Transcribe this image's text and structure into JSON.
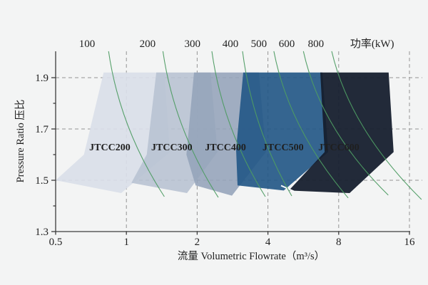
{
  "page": {
    "background": "#f3f4f4"
  },
  "chart_data": {
    "type": "area",
    "title": "",
    "description": "Centrifugal compressor family performance map: pressure ratio vs volumetric flowrate with constant-power curves",
    "x_axis": {
      "label": "流量 Volumetric Flowrate（m³/s）",
      "scale": "log2",
      "range": [
        0.5,
        16
      ],
      "ticks": [
        0.5,
        1,
        2,
        4,
        8,
        16
      ],
      "tick_labels": [
        "0.5",
        "1",
        "2",
        "4",
        "8",
        "16"
      ],
      "gridline_flows": [
        1,
        2,
        4,
        8,
        16
      ]
    },
    "y_axis": {
      "label": "Pressure Ratio 压比",
      "scale": "linear",
      "range": [
        1.3,
        2.0
      ],
      "ticks": [
        1.3,
        1.5,
        1.7,
        1.9
      ],
      "tick_labels": [
        "1.3",
        "1.5",
        "1.7",
        "1.9"
      ],
      "minor_ticks": [
        1.4,
        1.6,
        1.8
      ],
      "gridline_ratios": [
        1.5,
        1.7,
        1.9
      ]
    },
    "top_axis": {
      "label": "功率(kW)",
      "label_flow": 11.1,
      "tick_labels": [
        "100",
        "200",
        "300",
        "400",
        "500",
        "600",
        "800"
      ],
      "tick_flows": [
        0.68,
        1.23,
        1.91,
        2.77,
        3.66,
        4.81,
        6.4
      ]
    },
    "grid": {
      "style": "dashed",
      "color": "#949494"
    },
    "axis_color": "#3c3c3c",
    "series": [
      {
        "name": "JTCC200",
        "fill": "#d9dfe9",
        "opacity": 0.9,
        "label_color": "#19222f",
        "label_pos": {
          "flow": 0.85,
          "ratio": 1.63
        },
        "vertices": [
          [
            0.8,
            1.92
          ],
          [
            1.45,
            1.92
          ],
          [
            1.53,
            1.61
          ],
          [
            0.95,
            1.45
          ],
          [
            0.5,
            1.5
          ],
          [
            0.66,
            1.6
          ]
        ]
      },
      {
        "name": "JTCC300",
        "fill": "#b7c2d2",
        "opacity": 0.88,
        "label_color": "#19222f",
        "label_pos": {
          "flow": 1.56,
          "ratio": 1.63
        },
        "vertices": [
          [
            1.34,
            1.92
          ],
          [
            2.28,
            1.92
          ],
          [
            2.44,
            1.61
          ],
          [
            1.81,
            1.45
          ],
          [
            1.05,
            1.49
          ],
          [
            1.22,
            1.6
          ]
        ]
      },
      {
        "name": "JTCC400",
        "fill": "#94a3ba",
        "opacity": 0.88,
        "label_color": "#19222f",
        "label_pos": {
          "flow": 2.64,
          "ratio": 1.63
        },
        "vertices": [
          [
            1.94,
            1.92
          ],
          [
            3.66,
            1.92
          ],
          [
            3.92,
            1.61
          ],
          [
            2.81,
            1.44
          ],
          [
            1.97,
            1.48
          ],
          [
            1.8,
            1.6
          ]
        ]
      },
      {
        "name": "JTCC500",
        "fill": "#265988",
        "opacity": 0.93,
        "label_color": "#edf0f4",
        "label_pos": {
          "flow": 4.64,
          "ratio": 1.63
        },
        "vertices": [
          [
            3.14,
            1.92
          ],
          [
            6.82,
            1.92
          ],
          [
            7.22,
            1.61
          ],
          [
            4.67,
            1.46
          ],
          [
            2.97,
            1.48
          ],
          [
            2.93,
            1.62
          ]
        ]
      },
      {
        "name": "JTCC600",
        "fill": "#161f2e",
        "opacity": 0.95,
        "label_color": "#edf0f4",
        "label_pos": {
          "flow": 8.01,
          "ratio": 1.63
        },
        "vertices": [
          [
            6.68,
            1.92
          ],
          [
            13.05,
            1.92
          ],
          [
            13.7,
            1.61
          ],
          [
            8.9,
            1.45
          ],
          [
            4.91,
            1.46
          ],
          [
            6.97,
            1.61
          ]
        ]
      }
    ],
    "power_curves": {
      "color": "#4e9c63",
      "curves": [
        {
          "power": 100,
          "start": [
            0.84,
            2.003
          ],
          "end": [
            1.45,
            1.436
          ]
        },
        {
          "power": 200,
          "start": [
            1.43,
            2.003
          ],
          "end": [
            2.46,
            1.433
          ]
        },
        {
          "power": 300,
          "start": [
            2.31,
            2.003
          ],
          "end": [
            3.9,
            1.436
          ]
        },
        {
          "power": 400,
          "start": [
            3.12,
            2.003
          ],
          "end": [
            5.05,
            1.439
          ]
        },
        {
          "power": 500,
          "start": [
            4.24,
            2.003
          ],
          "end": [
            8.78,
            1.431
          ]
        },
        {
          "power": 600,
          "start": [
            5.66,
            2.003
          ],
          "end": [
            13.0,
            1.442
          ]
        },
        {
          "power": 800,
          "start": [
            7.47,
            2.003
          ],
          "end": [
            18.0,
            1.425
          ]
        }
      ]
    }
  }
}
